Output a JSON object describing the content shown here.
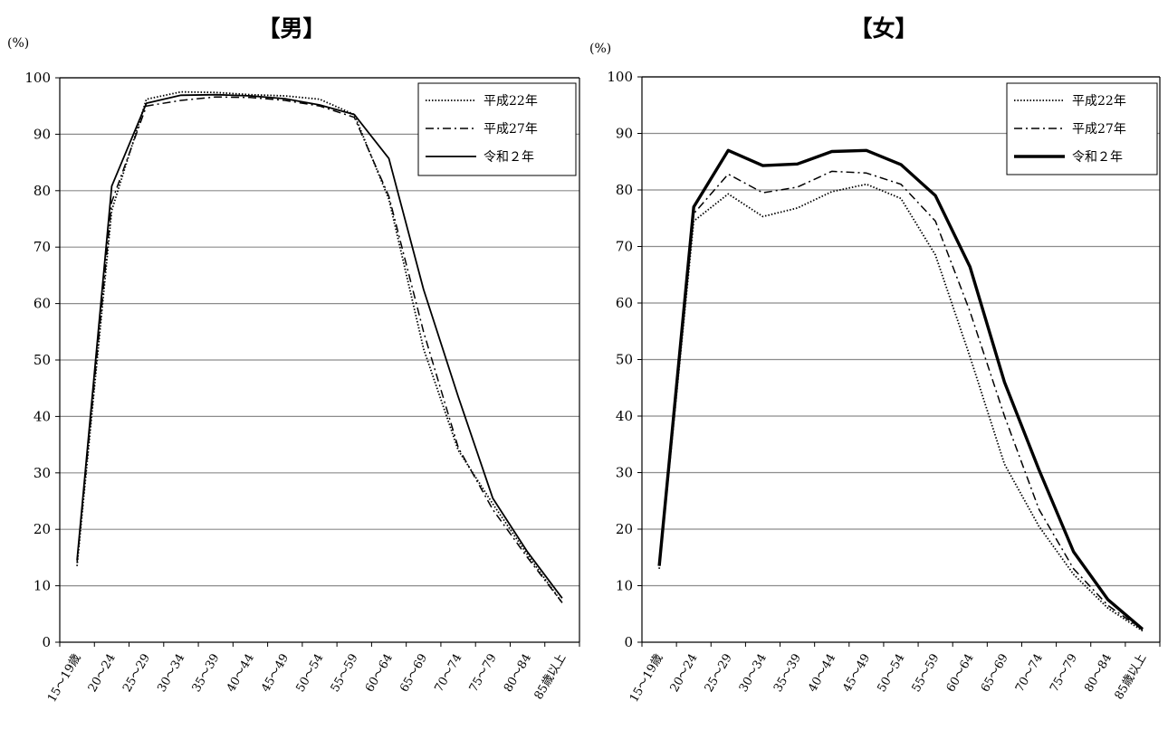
{
  "chart_data": [
    {
      "type": "line",
      "title": "【男】",
      "unit_label": "(%)",
      "ylim": [
        0,
        100
      ],
      "yticks": [
        0,
        10,
        20,
        30,
        40,
        50,
        60,
        70,
        80,
        90,
        100
      ],
      "grid": true,
      "legend_position": "top-right",
      "categories": [
        "15～19歳",
        "20～24",
        "25～29",
        "30～34",
        "35～39",
        "40～44",
        "45～49",
        "50～54",
        "55～59",
        "60～64",
        "65～69",
        "70～74",
        "75～79",
        "80～84",
        "85歳以上"
      ],
      "series": [
        {
          "name": "平成22年",
          "style": "dotted",
          "values": [
            13.5,
            76.5,
            96.2,
            97.5,
            97.4,
            97.0,
            96.8,
            96.2,
            93.5,
            78.5,
            52.0,
            34.0,
            24.5,
            15.5,
            7.0
          ]
        },
        {
          "name": "平成27年",
          "style": "dashdot",
          "values": [
            14.0,
            78.0,
            95.0,
            96.0,
            96.6,
            96.5,
            96.0,
            95.0,
            93.0,
            79.0,
            55.0,
            34.5,
            23.5,
            15.0,
            7.0
          ]
        },
        {
          "name": "令和２年",
          "style": "solid",
          "values": [
            14.5,
            80.8,
            95.5,
            96.9,
            97.0,
            96.8,
            96.3,
            95.2,
            93.5,
            85.7,
            62.5,
            43.5,
            25.5,
            16.0,
            7.8
          ]
        }
      ]
    },
    {
      "type": "line",
      "title": "【女】",
      "unit_label": "(%)",
      "ylim": [
        0,
        100
      ],
      "yticks": [
        0,
        10,
        20,
        30,
        40,
        50,
        60,
        70,
        80,
        90,
        100
      ],
      "grid": true,
      "legend_position": "top-right",
      "categories": [
        "15～19歳",
        "20～24",
        "25～29",
        "30～34",
        "35～39",
        "40～44",
        "45～49",
        "50～54",
        "55～59",
        "60～64",
        "65～69",
        "70～74",
        "75～79",
        "80～84",
        "85歳以上"
      ],
      "series": [
        {
          "name": "平成22年",
          "style": "dotted",
          "values": [
            13.0,
            74.5,
            79.3,
            75.3,
            76.8,
            79.7,
            81.0,
            78.5,
            68.5,
            50.5,
            31.5,
            20.5,
            12.0,
            6.0,
            2.0
          ]
        },
        {
          "name": "平成27年",
          "style": "dashdot",
          "values": [
            13.5,
            75.8,
            82.8,
            79.5,
            80.5,
            83.3,
            83.0,
            81.0,
            74.5,
            58.5,
            40.0,
            23.5,
            13.0,
            6.5,
            2.2
          ]
        },
        {
          "name": "令和２年",
          "style": "thick",
          "values": [
            13.5,
            77.0,
            87.0,
            84.3,
            84.6,
            86.8,
            87.0,
            84.5,
            79.0,
            66.4,
            46.0,
            30.5,
            16.0,
            7.5,
            2.3
          ]
        }
      ]
    }
  ]
}
